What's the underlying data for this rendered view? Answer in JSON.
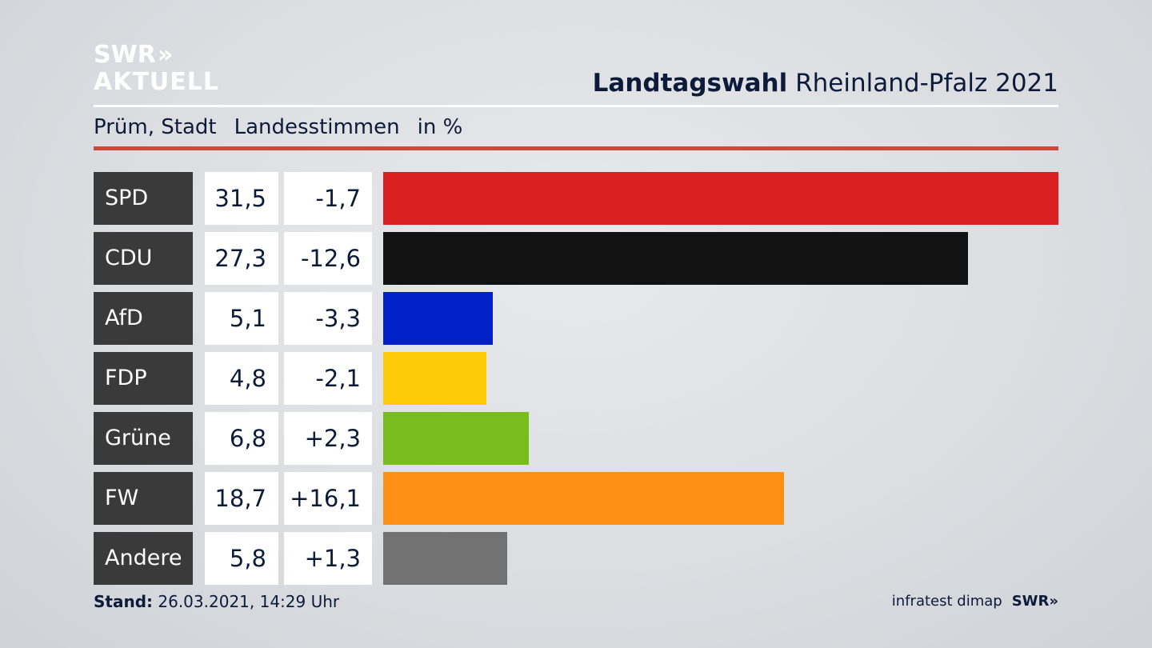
{
  "brand": {
    "logo_line1": "SWR",
    "logo_chevrons": "»",
    "logo_line2": "AKTUELL"
  },
  "header": {
    "title_bold": "Landtagswahl",
    "title_rest": "Rheinland-Pfalz 2021"
  },
  "subheader": {
    "place": "Prüm, Stadt",
    "metric": "Landesstimmen",
    "unit": "in %"
  },
  "chart_data": {
    "type": "bar",
    "orientation": "horizontal",
    "categories": [
      "SPD",
      "CDU",
      "AfD",
      "FDP",
      "Grüne",
      "FW",
      "Andere"
    ],
    "values": [
      31.5,
      27.3,
      5.1,
      4.8,
      6.8,
      18.7,
      5.8
    ],
    "value_labels": [
      "31,5",
      "27,3",
      "5,1",
      "4,8",
      "6,8",
      "18,7",
      "5,8"
    ],
    "changes": [
      -1.7,
      -12.6,
      -3.3,
      -2.1,
      2.3,
      16.1,
      1.3
    ],
    "change_labels": [
      "-1,7",
      "-12,6",
      "-3,3",
      "-2,1",
      "+2,3",
      "+16,1",
      "+1,3"
    ],
    "colors": [
      "#d82020",
      "#121212",
      "#0021c8",
      "#fdca0a",
      "#78bc1e",
      "#fd8e16",
      "#727272"
    ],
    "xlim": [
      0,
      31.5
    ]
  },
  "footer": {
    "stand_label": "Stand:",
    "stand_value": "26.03.2021, 14:29 Uhr",
    "source": "infratest dimap",
    "source_brand": "SWR»"
  }
}
